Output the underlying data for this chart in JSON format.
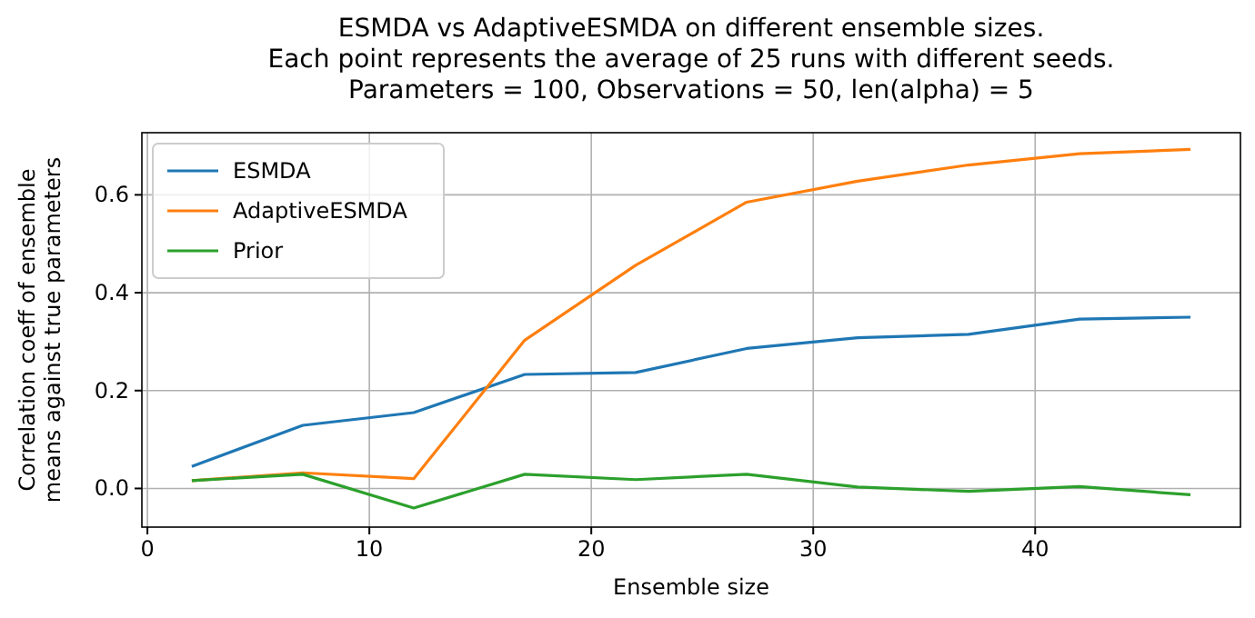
{
  "chart_data": {
    "type": "line",
    "title": "ESMDA vs AdaptiveESMDA on different ensemble sizes.\nEach point represents the average of 25 runs with different seeds.\nParameters = 100, Observations = 50, len(alpha) = 5",
    "xlabel": "Ensemble size",
    "ylabel": "Correlation coeff of ensemble\nmeans against true parameters",
    "x": [
      2,
      7,
      12,
      17,
      22,
      27,
      32,
      37,
      42,
      47
    ],
    "series": [
      {
        "name": "ESMDA",
        "color": "#1f77b4",
        "values": [
          0.045,
          0.129,
          0.155,
          0.233,
          0.237,
          0.286,
          0.308,
          0.315,
          0.346,
          0.35
        ]
      },
      {
        "name": "AdaptiveESMDA",
        "color": "#ff7f0e",
        "values": [
          0.016,
          0.032,
          0.02,
          0.303,
          0.456,
          0.585,
          0.628,
          0.661,
          0.684,
          0.693
        ]
      },
      {
        "name": "Prior",
        "color": "#2ca02c",
        "values": [
          0.016,
          0.029,
          -0.04,
          0.029,
          0.018,
          0.029,
          0.003,
          -0.006,
          0.004,
          -0.013
        ]
      }
    ],
    "xlim": [
      -0.25,
      49.25
    ],
    "ylim": [
      -0.079,
      0.727
    ],
    "xticks": [
      0,
      10,
      20,
      30,
      40
    ],
    "yticks": [
      {
        "value": 0,
        "label": "0.0"
      },
      0.2,
      0.4,
      0.6
    ],
    "grid": true,
    "legend": "top left",
    "marker": "none",
    "line_style": "solid"
  }
}
